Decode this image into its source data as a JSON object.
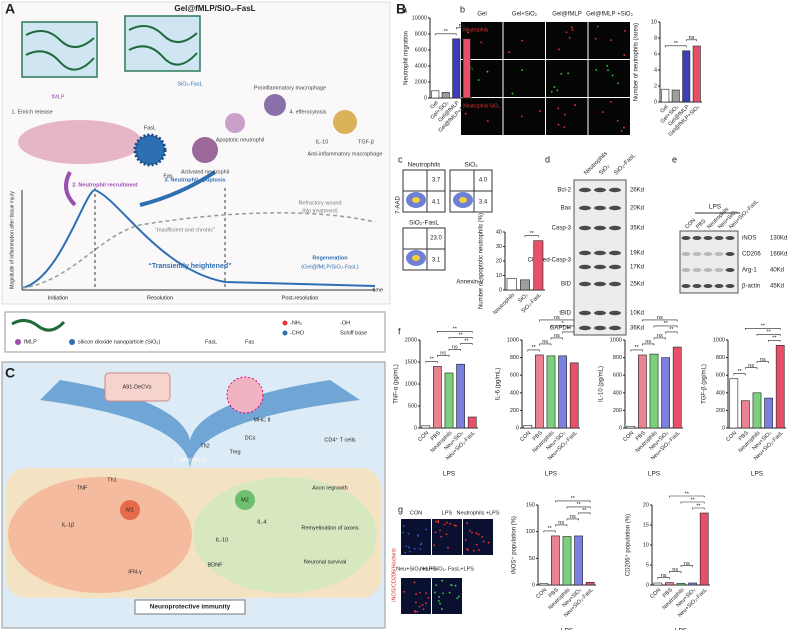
{
  "panel_labels": [
    "A",
    "B",
    "C"
  ],
  "sub_labels": [
    "a",
    "b",
    "c",
    "d",
    "e",
    "f",
    "g"
  ],
  "schematic_a": {
    "title": "Gel@fMLP/SiO₂-FasL",
    "labels": [
      "fMLP",
      "SiO₂-FasL",
      "1. Enrich release",
      "Proinflammatory macrophage",
      "Apoptotic neutrophil",
      "Activated neutrophil",
      "FasL",
      "Fas",
      "4. efferocytosis",
      "IL-10",
      "TGF-β",
      "Anti-inflammatory macrophage",
      "2. Neutrophil recruitment",
      "3. Neutrophil apoptosis"
    ],
    "curve": [
      "Magnitude of inflammation after tissue injury",
      "Initiation",
      "Resolution",
      "Post-resolution",
      "time",
      "“Transiently heightened”",
      "Regeneration",
      "(Gel@fMLP/SiO₂-FasL)",
      "“Insufficient and chronic”",
      "Refractory wound",
      "(No treatment)"
    ],
    "legend": [
      "fMLP",
      "silicon dioxide nanoparticle (SiO₂)",
      "FasL",
      "Fas",
      "-NH₂",
      "-CHO",
      "-OH",
      "Schiff base"
    ]
  },
  "schematic_c": {
    "labels": [
      "A91-DeCVs",
      "MHC II",
      "DCs",
      "CD4⁺ T cells",
      "T-cell training",
      "Th2",
      "Treg",
      "TNF",
      "Th1",
      "M1",
      "IL-1β",
      "IFN-γ",
      "M2",
      "IL-4",
      "IL-10",
      "BDNF",
      "Axon regrowth",
      "Remyelination of axons",
      "Neuronal survival",
      "Neuroprotective immunity"
    ]
  },
  "images_b": {
    "columns": [
      "Gel",
      "Gel+SiO₂",
      "Gel@fMLP",
      "Gel@fMLP +SiO₂"
    ],
    "rows": [
      "Neutrophils",
      "SiO₂",
      "Neutrophils SiO₂"
    ]
  },
  "flow_c": {
    "panels": [
      {
        "name": "Neutrophils",
        "upper": "3.7",
        "lower": "4.1"
      },
      {
        "name": "SiO₂",
        "upper": "4.0",
        "lower": "3.4"
      },
      {
        "name": "SiO₂-FasL",
        "upper": "23.0",
        "lower": "3.1"
      }
    ],
    "y_label": "7-AAD",
    "x_label": "Annexin V"
  },
  "blot_d": {
    "columns": [
      "Neutrophils",
      "SiO₂",
      "SiO₂-FasL"
    ],
    "rows": [
      {
        "name": "Bcl-2",
        "sizes": [
          "26Kd"
        ]
      },
      {
        "name": "Bax",
        "sizes": [
          "20Kd"
        ]
      },
      {
        "name": "Casp-3",
        "sizes": [
          "35Kd"
        ]
      },
      {
        "name": "Cleaved-Casp-3",
        "sizes": [
          "19Kd",
          "17Kd"
        ]
      },
      {
        "name": "BID",
        "sizes": [
          "25Kd"
        ]
      },
      {
        "name": "tBID",
        "sizes": [
          "10Kd"
        ]
      },
      {
        "name": "GAPDH",
        "sizes": [
          "36Kd"
        ]
      }
    ]
  },
  "blot_e": {
    "group": "LPS",
    "columns": [
      "CON",
      "PBS",
      "Neutrophils",
      "Neu+SiO₂",
      "Neu+SiO₂-FasL"
    ],
    "rows": [
      {
        "name": "iNOS",
        "sizes": [
          "130Kd"
        ]
      },
      {
        "name": "CD206",
        "sizes": [
          "166Kd"
        ]
      },
      {
        "name": "Arg-1",
        "sizes": [
          "40Kd"
        ]
      },
      {
        "name": "β-actin",
        "sizes": [
          "45Kd"
        ]
      }
    ]
  },
  "images_g": {
    "panels": [
      "CON",
      "LPS",
      "Neutrophils +LPS",
      "Neu+SiO₂ +LPS",
      "Neu+SiO₂- FasL+LPS"
    ],
    "stain": "iNOS/CD206/Hochest"
  },
  "charts": [
    {
      "type": "bar",
      "ylabel": "Neutrophil migration",
      "categories": [
        "Gel",
        "Gel+SiO₂",
        "Gel@fMLP",
        "Gel@fMLP+SiO₂"
      ],
      "values": [
        900,
        700,
        7400,
        7400
      ],
      "colors": [
        "#ffffff",
        "#9e9e9e",
        "#3d3db8",
        "#e8506a"
      ],
      "ylim": [
        0,
        10000
      ],
      "yticks": [
        0,
        2000,
        4000,
        6000,
        8000,
        10000
      ],
      "significance": [
        {
          "text": "**",
          "from": 0,
          "to": 2
        },
        {
          "text": "ns",
          "from": 2,
          "to": 3
        }
      ]
    },
    {
      "type": "bar",
      "ylabel": "Number of neutrophils (/area)",
      "categories": [
        "Gel",
        "Gel+SiO₂",
        "Gel@fMLP",
        "Gel@fMLP+SiO₂"
      ],
      "values": [
        1.6,
        1.5,
        6.4,
        7.0
      ],
      "colors": [
        "#ffffff",
        "#9e9e9e",
        "#3d3db8",
        "#e8506a"
      ],
      "ylim": [
        0,
        10
      ],
      "yticks": [
        0,
        2,
        4,
        6,
        8,
        10
      ],
      "significance": [
        {
          "text": "**",
          "from": 0,
          "to": 2
        },
        {
          "text": "ns",
          "from": 2,
          "to": 3
        }
      ]
    },
    {
      "type": "bar",
      "ylabel": "Number of apoptotic neutrophils (%)",
      "categories": [
        "Neutrophils",
        "SiO₂",
        "SiO₂-FasL"
      ],
      "values": [
        8,
        7,
        34
      ],
      "colors": [
        "#ffffff",
        "#9e9e9e",
        "#e8506a"
      ],
      "ylim": [
        0,
        40
      ],
      "yticks": [
        0,
        10,
        20,
        30,
        40
      ],
      "significance": [
        {
          "text": "**",
          "from": 1,
          "to": 2
        }
      ]
    },
    {
      "type": "bar",
      "ylabel": "TNF-α (pg/mL)",
      "xlabel": "LPS",
      "categories": [
        "CON",
        "PBS",
        "Neutrophils",
        "Neu+SiO₂",
        "Neu+SiO₂-FasL"
      ],
      "values": [
        50,
        1400,
        1250,
        1450,
        250
      ],
      "colors": [
        "#ffffff",
        "#e8838f",
        "#7ccf7c",
        "#7a7fe0",
        "#e8506a"
      ],
      "ylim": [
        0,
        2000
      ],
      "yticks": [
        0,
        500,
        1000,
        1500,
        2000
      ],
      "significance": [
        {
          "text": "**",
          "from": 0,
          "to": 1
        },
        {
          "text": "ns",
          "from": 1,
          "to": 2
        },
        {
          "text": "ns",
          "from": 2,
          "to": 3
        },
        {
          "text": "**",
          "from": 3,
          "to": 4
        },
        {
          "text": "**",
          "from": 2,
          "to": 4
        },
        {
          "text": "**",
          "from": 1,
          "to": 4
        }
      ]
    },
    {
      "type": "bar",
      "ylabel": "IL-6 (pg/mL)",
      "xlabel": "LPS",
      "categories": [
        "CON",
        "PBS",
        "Neutrophils",
        "Neu+SiO₂",
        "Neu+SiO₂-FasL"
      ],
      "values": [
        30,
        830,
        820,
        820,
        740
      ],
      "colors": [
        "#ffffff",
        "#e8838f",
        "#7ccf7c",
        "#7a7fe0",
        "#e8506a"
      ],
      "ylim": [
        0,
        1000
      ],
      "yticks": [
        0,
        200,
        400,
        600,
        800,
        1000
      ],
      "significance": [
        {
          "text": "**",
          "from": 0,
          "to": 1
        },
        {
          "text": "ns",
          "from": 1,
          "to": 2
        },
        {
          "text": "ns",
          "from": 2,
          "to": 3
        },
        {
          "text": "*",
          "from": 3,
          "to": 4
        },
        {
          "text": "*",
          "from": 2,
          "to": 4
        },
        {
          "text": "ns",
          "from": 1,
          "to": 4
        }
      ]
    },
    {
      "type": "bar",
      "ylabel": "IL-10 (pg/mL)",
      "xlabel": "LPS",
      "categories": [
        "CON",
        "PBS",
        "Neutrophils",
        "Neu+SiO₂",
        "Neu+SiO₂-FasL"
      ],
      "values": [
        20,
        830,
        840,
        800,
        920
      ],
      "colors": [
        "#ffffff",
        "#e8838f",
        "#7ccf7c",
        "#7a7fe0",
        "#e8506a"
      ],
      "ylim": [
        0,
        1000
      ],
      "yticks": [
        0,
        200,
        400,
        600,
        800,
        1000
      ],
      "significance": [
        {
          "text": "**",
          "from": 0,
          "to": 1
        },
        {
          "text": "ns",
          "from": 1,
          "to": 2
        },
        {
          "text": "ns",
          "from": 2,
          "to": 3
        },
        {
          "text": "**",
          "from": 3,
          "to": 4
        },
        {
          "text": "**",
          "from": 2,
          "to": 4
        },
        {
          "text": "ns",
          "from": 1,
          "to": 4
        }
      ]
    },
    {
      "type": "bar",
      "ylabel": "TGF-β (pg/mL)",
      "xlabel": "LPS",
      "categories": [
        "CON",
        "PBS",
        "Neutrophils",
        "Neu+SiO₂",
        "Neu+SiO₂-FasL"
      ],
      "values": [
        560,
        310,
        400,
        340,
        940
      ],
      "colors": [
        "#ffffff",
        "#e8838f",
        "#7ccf7c",
        "#7a7fe0",
        "#e8506a"
      ],
      "ylim": [
        0,
        1000
      ],
      "yticks": [
        0,
        200,
        400,
        600,
        800,
        1000
      ],
      "significance": [
        {
          "text": "**",
          "from": 0,
          "to": 1
        },
        {
          "text": "ns",
          "from": 1,
          "to": 2
        },
        {
          "text": "ns",
          "from": 2,
          "to": 3
        },
        {
          "text": "**",
          "from": 3,
          "to": 4
        },
        {
          "text": "**",
          "from": 2,
          "to": 4
        },
        {
          "text": "**",
          "from": 1,
          "to": 4
        }
      ]
    },
    {
      "type": "bar",
      "ylabel": "iNOS⁺ population (%)",
      "xlabel": "LPS",
      "categories": [
        "CON",
        "PBS",
        "Neutrophils",
        "Neu+SiO₂",
        "Neu+SiO₂-FasL"
      ],
      "values": [
        3,
        92,
        91,
        92,
        5
      ],
      "colors": [
        "#ffffff",
        "#e8838f",
        "#7ccf7c",
        "#7a7fe0",
        "#e8506a"
      ],
      "ylim": [
        0,
        150
      ],
      "yticks": [
        0,
        50,
        100,
        150
      ],
      "significance": [
        {
          "text": "**",
          "from": 0,
          "to": 1
        },
        {
          "text": "ns",
          "from": 1,
          "to": 2
        },
        {
          "text": "ns",
          "from": 2,
          "to": 3
        },
        {
          "text": "**",
          "from": 3,
          "to": 4
        },
        {
          "text": "**",
          "from": 2,
          "to": 4
        },
        {
          "text": "**",
          "from": 1,
          "to": 4
        }
      ]
    },
    {
      "type": "bar",
      "ylabel": "CD206⁺ population (%)",
      "xlabel": "LPS",
      "categories": [
        "CON",
        "PBS",
        "Neutrophils",
        "Neu+SiO₂",
        "Neu+SiO₂-FasL"
      ],
      "values": [
        0.5,
        0.6,
        0.4,
        0.5,
        18
      ],
      "colors": [
        "#ffffff",
        "#e8838f",
        "#7ccf7c",
        "#7a7fe0",
        "#e8506a"
      ],
      "ylim": [
        0,
        20
      ],
      "yticks": [
        0,
        5,
        10,
        15,
        20
      ],
      "significance": [
        {
          "text": "ns",
          "from": 0,
          "to": 1
        },
        {
          "text": "ns",
          "from": 1,
          "to": 2
        },
        {
          "text": "ns",
          "from": 2,
          "to": 3
        },
        {
          "text": "**",
          "from": 3,
          "to": 4
        },
        {
          "text": "**",
          "from": 2,
          "to": 4
        },
        {
          "text": "**",
          "from": 1,
          "to": 4
        }
      ]
    }
  ]
}
